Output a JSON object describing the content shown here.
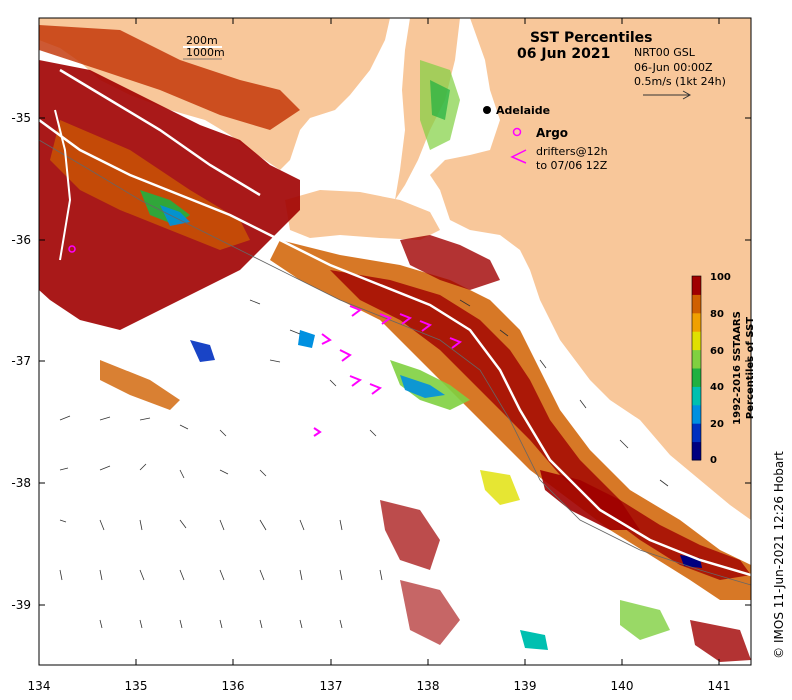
{
  "title": {
    "line1": "SST Percentiles",
    "line2": "06 Jun 2021"
  },
  "info": {
    "product": "NRT00 GSL",
    "time": "06-Jun 00:00Z",
    "scale": "0.5m/s (1kt 24h)"
  },
  "depth_legend": {
    "c200": "200m",
    "c1000": "1000m"
  },
  "places": {
    "adelaide": "Adelaide"
  },
  "legend": {
    "argo": "Argo",
    "drifters_1": "drifters@12h",
    "drifters_2": "to 07/06 12Z"
  },
  "colorbar": {
    "label_1": "1992-2016 SSTAARS",
    "label_2": "Percentiles of SST",
    "ticks": [
      "100",
      "80",
      "60",
      "40",
      "20",
      "0"
    ],
    "colors": [
      "#000080",
      "#0030c0",
      "#0090e0",
      "#00c0b0",
      "#20b040",
      "#80d040",
      "#e0e000",
      "#f0a000",
      "#d06000",
      "#a00000"
    ]
  },
  "axes": {
    "x_ticks": [
      "134",
      "135",
      "136",
      "137",
      "138",
      "139",
      "140",
      "141"
    ],
    "y_ticks": [
      "-35",
      "-36",
      "-37",
      "-38",
      "-39"
    ]
  },
  "credit": "© IMOS 11-Jun-2021 12:26 Hobart",
  "colors": {
    "land": "#f8c79a",
    "argo": "#ff00ff",
    "drifter": "#ff00ff"
  }
}
